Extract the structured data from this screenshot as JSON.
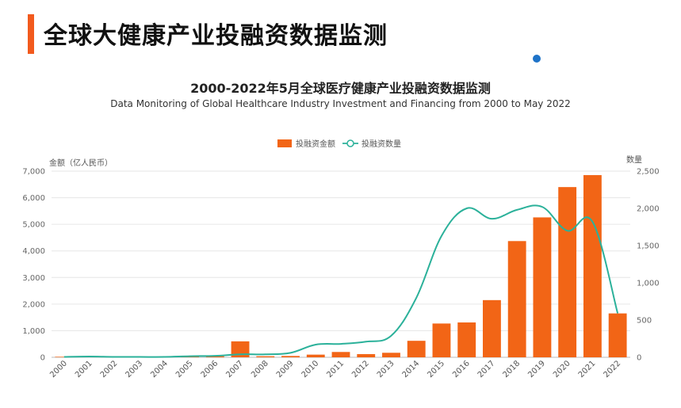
{
  "page": {
    "title": "全球大健康产业投融资数据监测"
  },
  "colors": {
    "accent": "#F25A1D",
    "bar": "#F26516",
    "line": "#2BB19A",
    "dot": "#1E73C8"
  },
  "chart_data": {
    "type": "bar",
    "title": "2000-2022年5月全球医疗健康产业投融资数据监测",
    "subtitle": "Data Monitoring of Global Healthcare Industry Investment and Financing from 2000 to May 2022",
    "legend_position": "top-center",
    "grid": true,
    "y_left_label": "金额（亿人民币）",
    "y_right_label": "数量",
    "y_left_range": [
      0,
      7000
    ],
    "y_right_range": [
      0,
      2500
    ],
    "y_left_ticks": [
      "0",
      "1,000",
      "2,000",
      "3,000",
      "4,000",
      "5,000",
      "6,000",
      "7,000"
    ],
    "y_right_ticks": [
      "0",
      "500",
      "1,000",
      "1,500",
      "2,000",
      "2,500"
    ],
    "categories": [
      "2000",
      "2001",
      "2002",
      "2003",
      "2004",
      "2005",
      "2006",
      "2007",
      "2008",
      "2009",
      "2010",
      "2011",
      "2012",
      "2013",
      "2014",
      "2015",
      "2016",
      "2017",
      "2018",
      "2019",
      "2020",
      "2021",
      "2022"
    ],
    "series": [
      {
        "name": "投融资金额",
        "type": "bar",
        "axis": "left",
        "values": [
          20,
          15,
          15,
          25,
          25,
          40,
          40,
          600,
          40,
          50,
          100,
          200,
          120,
          170,
          620,
          1270,
          1310,
          2150,
          4370,
          5260,
          6400,
          6850,
          1650
        ]
      },
      {
        "name": "投融资数量",
        "type": "line",
        "axis": "right",
        "values": [
          5,
          10,
          5,
          5,
          5,
          15,
          20,
          40,
          40,
          60,
          170,
          180,
          210,
          290,
          800,
          1630,
          2000,
          1860,
          1980,
          2020,
          1700,
          1820,
          590
        ]
      }
    ]
  }
}
